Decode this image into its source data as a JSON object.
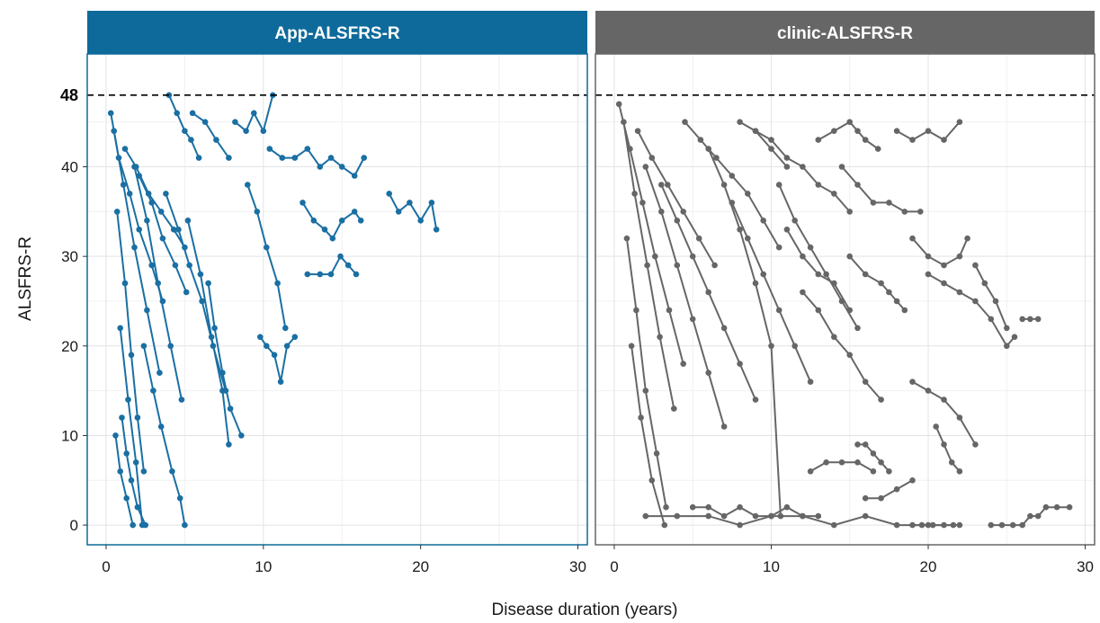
{
  "chart_data": {
    "type": "line",
    "xlabel": "Disease duration (years)",
    "ylabel": "ALSFRS-R",
    "xlim": [
      -1.2,
      30.6
    ],
    "ylim": [
      -2.2,
      52.6
    ],
    "x_ticks": [
      0,
      10,
      20,
      30
    ],
    "y_ticks": [
      0,
      10,
      20,
      30,
      40
    ],
    "reference_line": {
      "y": 48,
      "label": "48",
      "style": "dashed"
    },
    "grid": true,
    "panels": [
      {
        "title": "App-ALSFRS-R",
        "strip_color": "#0d6a9a",
        "color": "#1a6fa3",
        "series": [
          {
            "x": [
              0.3,
              0.8,
              1.5,
              2.1,
              2.9,
              3.6
            ],
            "y": [
              46,
              41,
              37,
              33,
              29,
              25
            ]
          },
          {
            "x": [
              0.5,
              1.1,
              1.8,
              2.6,
              3.4
            ],
            "y": [
              44,
              38,
              31,
              24,
              17
            ]
          },
          {
            "x": [
              0.7,
              1.2,
              1.6,
              2.0,
              2.4
            ],
            "y": [
              35,
              27,
              19,
              12,
              6
            ]
          },
          {
            "x": [
              0.9,
              1.4,
              1.9,
              2.3
            ],
            "y": [
              22,
              14,
              7,
              0
            ]
          },
          {
            "x": [
              1.2,
              1.9,
              2.7,
              3.5,
              4.3,
              5.0
            ],
            "y": [
              42,
              40,
              37,
              35,
              33,
              31
            ]
          },
          {
            "x": [
              1.8,
              2.6,
              3.3,
              4.1,
              4.8
            ],
            "y": [
              40,
              34,
              27,
              20,
              14
            ]
          },
          {
            "x": [
              0.6,
              0.9,
              1.3,
              1.7
            ],
            "y": [
              10,
              6,
              3,
              0
            ]
          },
          {
            "x": [
              1.0,
              1.3,
              1.6,
              2.0,
              2.5
            ],
            "y": [
              12,
              8,
              5,
              2,
              0
            ]
          },
          {
            "x": [
              2.4,
              3.0,
              3.5,
              4.2,
              4.7,
              5.0
            ],
            "y": [
              20,
              15,
              11,
              6,
              3,
              0
            ]
          },
          {
            "x": [
              2.1,
              2.9,
              3.6,
              4.4,
              5.1
            ],
            "y": [
              39,
              36,
              32,
              29,
              26
            ]
          },
          {
            "x": [
              3.8,
              4.6,
              5.3,
              6.1,
              6.8,
              7.6
            ],
            "y": [
              37,
              33,
              29,
              25,
              20,
              15
            ]
          },
          {
            "x": [
              5.2,
              6.0,
              6.7,
              7.4,
              7.8
            ],
            "y": [
              34,
              28,
              21,
              15,
              9
            ]
          },
          {
            "x": [
              5.5,
              6.3,
              7.0,
              7.8
            ],
            "y": [
              46,
              45,
              43,
              41
            ]
          },
          {
            "x": [
              8.2,
              8.9,
              9.4,
              10.0,
              10.6
            ],
            "y": [
              45,
              44,
              46,
              44,
              48
            ]
          },
          {
            "x": [
              9.0,
              9.6,
              10.2,
              10.9,
              11.4
            ],
            "y": [
              38,
              35,
              31,
              27,
              22
            ]
          },
          {
            "x": [
              9.8,
              10.2,
              10.7,
              11.1,
              11.5,
              12.0
            ],
            "y": [
              21,
              20,
              19,
              16,
              20,
              21
            ]
          },
          {
            "x": [
              10.4,
              11.2,
              12.0,
              12.8,
              13.6,
              14.3,
              15.0,
              15.8,
              16.4
            ],
            "y": [
              42,
              41,
              41,
              42,
              40,
              41,
              40,
              39,
              41
            ]
          },
          {
            "x": [
              12.5,
              13.2,
              13.9,
              14.4,
              15.0,
              15.8,
              16.2
            ],
            "y": [
              36,
              34,
              33,
              32,
              34,
              35,
              34
            ]
          },
          {
            "x": [
              12.8,
              13.6,
              14.3,
              14.9,
              15.4,
              15.9
            ],
            "y": [
              28,
              28,
              28,
              30,
              29,
              28
            ]
          },
          {
            "x": [
              18.0,
              18.6,
              19.3,
              20.0,
              20.7,
              21.0
            ],
            "y": [
              37,
              35,
              36,
              34,
              36,
              33
            ]
          },
          {
            "x": [
              6.5,
              6.9,
              7.4,
              7.9,
              8.6
            ],
            "y": [
              27,
              22,
              17,
              13,
              10
            ]
          },
          {
            "x": [
              4.0,
              4.5,
              5.0,
              5.4,
              5.9
            ],
            "y": [
              48,
              46,
              44,
              43,
              41
            ]
          }
        ]
      },
      {
        "title": "clinic-ALSFRS-R",
        "strip_color": "#666666",
        "color": "#666666",
        "series": [
          {
            "x": [
              0.3,
              1.0,
              1.8,
              2.6,
              3.5,
              4.4
            ],
            "y": [
              47,
              42,
              36,
              30,
              24,
              18
            ]
          },
          {
            "x": [
              0.6,
              1.3,
              2.1,
              2.9,
              3.8
            ],
            "y": [
              45,
              37,
              29,
              21,
              13
            ]
          },
          {
            "x": [
              0.8,
              1.4,
              2.0,
              2.7,
              3.3
            ],
            "y": [
              32,
              24,
              15,
              8,
              2
            ]
          },
          {
            "x": [
              1.1,
              1.7,
              2.4,
              3.2
            ],
            "y": [
              20,
              12,
              5,
              0
            ]
          },
          {
            "x": [
              1.5,
              2.4,
              3.4,
              4.4,
              5.4,
              6.4
            ],
            "y": [
              44,
              41,
              38,
              35,
              32,
              29
            ]
          },
          {
            "x": [
              2.0,
              3.0,
              4.0,
              5.0,
              6.0,
              7.0
            ],
            "y": [
              40,
              35,
              29,
              23,
              17,
              11
            ]
          },
          {
            "x": [
              3.0,
              4.0,
              5.0,
              6.0,
              7.0,
              8.0,
              9.0
            ],
            "y": [
              38,
              34,
              30,
              26,
              22,
              18,
              14
            ]
          },
          {
            "x": [
              4.5,
              5.5,
              6.5,
              7.5,
              8.5,
              9.5,
              10.5
            ],
            "y": [
              45,
              43,
              41,
              39,
              37,
              34,
              31
            ]
          },
          {
            "x": [
              6.0,
              7.0,
              8.0,
              9.0,
              10.0,
              10.6
            ],
            "y": [
              42,
              38,
              33,
              27,
              20,
              1
            ]
          },
          {
            "x": [
              7.5,
              8.5,
              9.5,
              10.5,
              11.5,
              12.5
            ],
            "y": [
              36,
              32,
              28,
              24,
              20,
              16
            ]
          },
          {
            "x": [
              9.0,
              10.0,
              11.0,
              12.0,
              13.0,
              14.0,
              15.0
            ],
            "y": [
              44,
              43,
              41,
              40,
              38,
              37,
              35
            ]
          },
          {
            "x": [
              10.5,
              11.5,
              12.5,
              13.5,
              14.5,
              15.5
            ],
            "y": [
              38,
              34,
              31,
              28,
              25,
              22
            ]
          },
          {
            "x": [
              12.0,
              13.0,
              14.0,
              15.0,
              16.0,
              17.0
            ],
            "y": [
              26,
              24,
              21,
              19,
              16,
              14
            ]
          },
          {
            "x": [
              13.0,
              14.0,
              15.0,
              15.5,
              16.0,
              16.8
            ],
            "y": [
              43,
              44,
              45,
              44,
              43,
              42
            ]
          },
          {
            "x": [
              14.5,
              15.5,
              16.5,
              17.5,
              18.5,
              19.5
            ],
            "y": [
              40,
              38,
              36,
              36,
              35,
              35
            ]
          },
          {
            "x": [
              15.0,
              16.0,
              17.0,
              17.5,
              18.0,
              18.5
            ],
            "y": [
              30,
              28,
              27,
              26,
              25,
              24
            ]
          },
          {
            "x": [
              18.0,
              19.0,
              20.0,
              21.0,
              22.0
            ],
            "y": [
              44,
              43,
              44,
              43,
              45
            ]
          },
          {
            "x": [
              19.0,
              20.0,
              21.0,
              22.0,
              22.5
            ],
            "y": [
              32,
              30,
              29,
              30,
              32
            ]
          },
          {
            "x": [
              20.0,
              21.0,
              22.0,
              23.0,
              24.0,
              25.0,
              25.5
            ],
            "y": [
              28,
              27,
              26,
              25,
              23,
              20,
              21
            ]
          },
          {
            "x": [
              23.0,
              23.6,
              24.3,
              25.0
            ],
            "y": [
              29,
              27,
              25,
              22
            ]
          },
          {
            "x": [
              26.0,
              26.5,
              27.0
            ],
            "y": [
              23,
              23,
              23
            ]
          },
          {
            "x": [
              19.0,
              20.0,
              21.0,
              22.0,
              23.0
            ],
            "y": [
              16,
              15,
              14,
              12,
              9
            ]
          },
          {
            "x": [
              20.5,
              21.0,
              21.5,
              22.0
            ],
            "y": [
              11,
              9,
              7,
              6
            ]
          },
          {
            "x": [
              15.5,
              16.0,
              16.5,
              17.0,
              17.5
            ],
            "y": [
              9,
              9,
              8,
              7,
              6
            ]
          },
          {
            "x": [
              12.5,
              13.5,
              14.5,
              15.5,
              16.5
            ],
            "y": [
              6,
              7,
              7,
              7,
              6
            ]
          },
          {
            "x": [
              16.0,
              17.0,
              18.0,
              19.0
            ],
            "y": [
              3,
              3,
              4,
              5
            ]
          },
          {
            "x": [
              2.0,
              4.0,
              6.0,
              8.0,
              10.0,
              12.0,
              14.0,
              16.0,
              18.0,
              20.0,
              22.0
            ],
            "y": [
              1,
              1,
              1,
              0,
              1,
              1,
              0,
              1,
              0,
              0,
              0
            ]
          },
          {
            "x": [
              24.0,
              24.7,
              25.4,
              26.0,
              26.5,
              27.0,
              27.5,
              28.2,
              29.0
            ],
            "y": [
              0,
              0,
              0,
              0,
              1,
              1,
              2,
              2,
              2
            ]
          },
          {
            "x": [
              19.0,
              19.6,
              20.3,
              21.0,
              21.6
            ],
            "y": [
              0,
              0,
              0,
              0,
              0
            ]
          },
          {
            "x": [
              5.0,
              6.0,
              7.0,
              8.0,
              9.0,
              10.0,
              11.0,
              12.0,
              13.0
            ],
            "y": [
              2,
              2,
              1,
              2,
              1,
              1,
              2,
              1,
              1
            ]
          },
          {
            "x": [
              8.0,
              9.0,
              10.0,
              11.0
            ],
            "y": [
              45,
              44,
              42,
              40
            ]
          },
          {
            "x": [
              11.0,
              12.0,
              13.0,
              14.0,
              15.0
            ],
            "y": [
              33,
              30,
              28,
              27,
              24
            ]
          }
        ]
      }
    ]
  }
}
